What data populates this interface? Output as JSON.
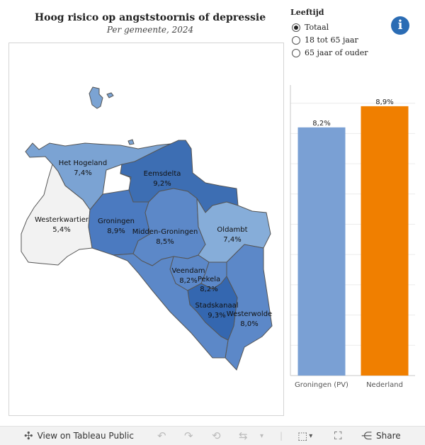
{
  "title": "Hoog risico op angststoornis of depressie",
  "subtitle": "Per gemeente, 2024",
  "legend": {
    "title": "Leeftijd",
    "options": [
      "Totaal",
      "18 tot 65 jaar",
      "65 jaar of ouder"
    ],
    "selected": "Totaal"
  },
  "colors": {
    "province_bar": "#7aa0d4",
    "national_bar": "#f07f00",
    "no_data": "#f2f2f2"
  },
  "chart_data": [
    {
      "type": "choropleth",
      "title": "Hoog risico op angststoornis of depressie",
      "subtitle": "Per gemeente, 2024",
      "unit": "%",
      "regions": [
        {
          "name": "Het Hogeland",
          "label": "7,4%",
          "value": 7.4
        },
        {
          "name": "Eemsdelta",
          "label": "9,2%",
          "value": 9.2
        },
        {
          "name": "Westerkwartier",
          "label": "5,4%",
          "value": 5.4
        },
        {
          "name": "Groningen",
          "label": "8,9%",
          "value": 8.9
        },
        {
          "name": "Midden-Groningen",
          "label": "8,5%",
          "value": 8.5
        },
        {
          "name": "Oldambt",
          "label": "7,4%",
          "value": 7.4
        },
        {
          "name": "Veendam",
          "label": "8,2%",
          "value": 8.2
        },
        {
          "name": "Pekela",
          "label": "8,2%",
          "value": 8.2
        },
        {
          "name": "Stadskanaal",
          "label": "9,3%",
          "value": 9.3
        },
        {
          "name": "Westerwolde",
          "label": "8,0%",
          "value": 8.0
        }
      ]
    },
    {
      "type": "bar",
      "categories": [
        "Groningen (PV)",
        "Nederland"
      ],
      "values": [
        8.2,
        8.9
      ],
      "labels": [
        "8,2%",
        "8,9%"
      ],
      "ylim": [
        0,
        9.6
      ],
      "xlabel": "",
      "ylabel": ""
    }
  ],
  "toolbar": {
    "view_label": "View on Tableau Public",
    "share_label": "Share"
  }
}
